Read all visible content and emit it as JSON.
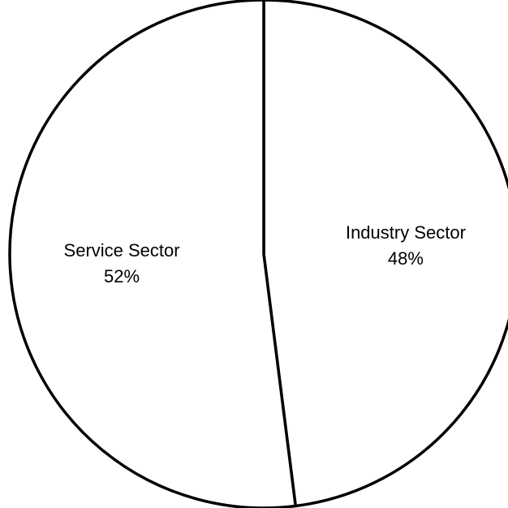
{
  "chart_data": {
    "type": "pie",
    "title": "",
    "start_angle_deg": 0,
    "direction": "clockwise",
    "slices": [
      {
        "label": "Industry Sector",
        "percent_label": "48%",
        "value": 48
      },
      {
        "label": "Service Sector",
        "percent_label": "52%",
        "value": 52
      }
    ],
    "colors": {
      "fill": "#ffffff",
      "stroke": "#000000"
    },
    "legend": "none"
  }
}
